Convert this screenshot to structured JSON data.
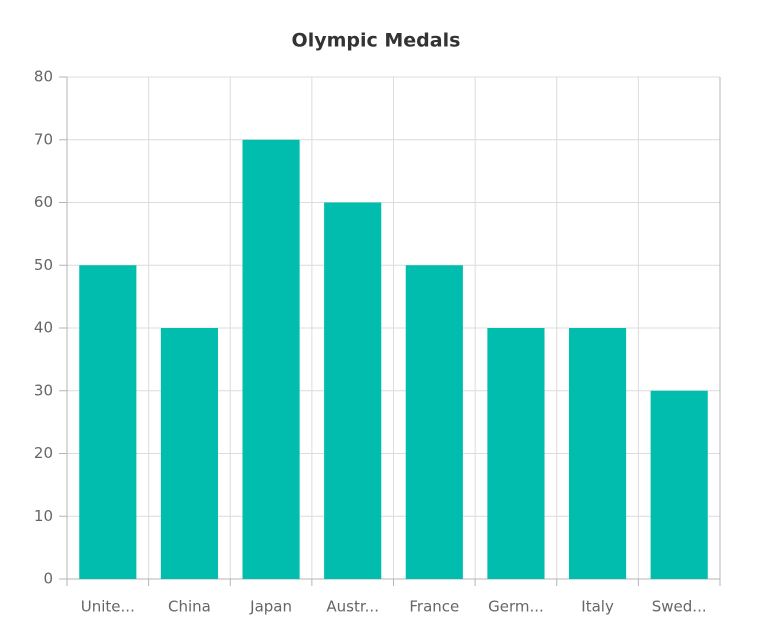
{
  "chart_data": {
    "type": "bar",
    "title": "Olympic Medals",
    "categories": [
      "Unite...",
      "China",
      "Japan",
      "Austr...",
      "France",
      "Germ...",
      "Italy",
      "Swed..."
    ],
    "values": [
      50,
      40,
      70,
      60,
      50,
      40,
      40,
      30
    ],
    "color": "#00bdae",
    "ylim": [
      0,
      80
    ],
    "yticks": [
      0,
      10,
      20,
      30,
      40,
      50,
      60,
      70,
      80
    ],
    "grid": true
  }
}
